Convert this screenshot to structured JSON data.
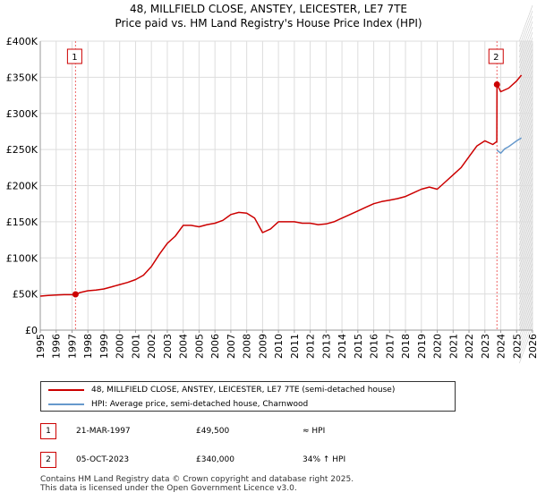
{
  "title": "48, MILLFIELD CLOSE, ANSTEY, LEICESTER, LE7 7TE",
  "subtitle": "Price paid vs. HM Land Registry's House Price Index (HPI)",
  "chart_data": {
    "type": "line",
    "title": "48, MILLFIELD CLOSE, ANSTEY, LEICESTER, LE7 7TE",
    "subtitle": "Price paid vs. HM Land Registry's House Price Index (HPI)",
    "xlabel": "",
    "ylabel": "",
    "xlim": [
      1995,
      2026
    ],
    "ylim": [
      0,
      400000
    ],
    "grid": true,
    "y_ticks": [
      {
        "value": 0,
        "label": "£0"
      },
      {
        "value": 50000,
        "label": "£50K"
      },
      {
        "value": 100000,
        "label": "£100K"
      },
      {
        "value": 150000,
        "label": "£150K"
      },
      {
        "value": 200000,
        "label": "£200K"
      },
      {
        "value": 250000,
        "label": "£250K"
      },
      {
        "value": 300000,
        "label": "£300K"
      },
      {
        "value": 350000,
        "label": "£350K"
      },
      {
        "value": 400000,
        "label": "£400K"
      }
    ],
    "x_ticks": [
      "1995",
      "1996",
      "1997",
      "1998",
      "1999",
      "2000",
      "2001",
      "2002",
      "2003",
      "2004",
      "2005",
      "2006",
      "2007",
      "2008",
      "2009",
      "2010",
      "2011",
      "2012",
      "2013",
      "2014",
      "2015",
      "2016",
      "2017",
      "2018",
      "2019",
      "2020",
      "2021",
      "2022",
      "2023",
      "2024",
      "2025",
      "2026"
    ],
    "series": [
      {
        "name": "48, MILLFIELD CLOSE, ANSTEY, LEICESTER, LE7 7TE (semi-detached house)",
        "color": "#cc0000",
        "x": [
          1995.0,
          1995.5,
          1996.0,
          1996.5,
          1997.0,
          1997.22,
          1997.5,
          1998.0,
          1998.5,
          1999.0,
          1999.5,
          2000.0,
          2000.5,
          2001.0,
          2001.5,
          2002.0,
          2002.5,
          2003.0,
          2003.5,
          2004.0,
          2004.5,
          2005.0,
          2005.5,
          2006.0,
          2006.5,
          2007.0,
          2007.5,
          2008.0,
          2008.5,
          2009.0,
          2009.5,
          2010.0,
          2010.5,
          2011.0,
          2011.5,
          2012.0,
          2012.5,
          2013.0,
          2013.5,
          2014.0,
          2014.5,
          2015.0,
          2015.5,
          2016.0,
          2016.5,
          2017.0,
          2017.5,
          2018.0,
          2018.5,
          2019.0,
          2019.5,
          2020.0,
          2020.5,
          2021.0,
          2021.5,
          2022.0,
          2022.5,
          2023.0,
          2023.5,
          2023.75,
          2023.76,
          2024.0,
          2024.5,
          2025.0,
          2025.3
        ],
        "values": [
          47000,
          48000,
          48500,
          49000,
          49000,
          49500,
          52000,
          54500,
          55500,
          57000,
          60000,
          63000,
          66000,
          70000,
          76000,
          88000,
          105000,
          120000,
          130000,
          145000,
          145000,
          143000,
          146000,
          148000,
          152000,
          160000,
          163000,
          162000,
          155000,
          135000,
          140000,
          150000,
          150000,
          150000,
          148000,
          148000,
          146000,
          147000,
          150000,
          155000,
          160000,
          165000,
          170000,
          175000,
          178000,
          180000,
          182000,
          185000,
          190000,
          195000,
          198000,
          195000,
          205000,
          215000,
          225000,
          240000,
          255000,
          262000,
          257000,
          261000,
          340000,
          330000,
          335000,
          345000,
          353000
        ]
      },
      {
        "name": "HPI: Average price, semi-detached house, Charnwood",
        "color": "#6699cc",
        "x": [
          2023.76,
          2024.0,
          2024.25,
          2024.5,
          2024.75,
          2025.0,
          2025.3
        ],
        "values": [
          249000,
          245000,
          251000,
          254000,
          258000,
          262000,
          266000
        ]
      }
    ],
    "sales": [
      {
        "marker": "1",
        "x": 1997.22,
        "value": 49500
      },
      {
        "marker": "2",
        "x": 2023.76,
        "value": 340000
      }
    ],
    "shaded_region": {
      "x_start": 2025.17,
      "x_end": 2026
    }
  },
  "legend": {
    "items": [
      {
        "label": "48, MILLFIELD CLOSE, ANSTEY, LEICESTER, LE7 7TE (semi-detached house)",
        "color": "#cc0000"
      },
      {
        "label": "HPI: Average price, semi-detached house, Charnwood",
        "color": "#6699cc"
      }
    ]
  },
  "sales_table": [
    {
      "marker": "1",
      "date": "21-MAR-1997",
      "price": "£49,500",
      "hpi": "≈ HPI"
    },
    {
      "marker": "2",
      "date": "05-OCT-2023",
      "price": "£340,000",
      "hpi": "34% ↑ HPI"
    }
  ],
  "footer": {
    "line1": "Contains HM Land Registry data © Crown copyright and database right 2025.",
    "line2": "This data is licensed under the Open Government Licence v3.0."
  }
}
